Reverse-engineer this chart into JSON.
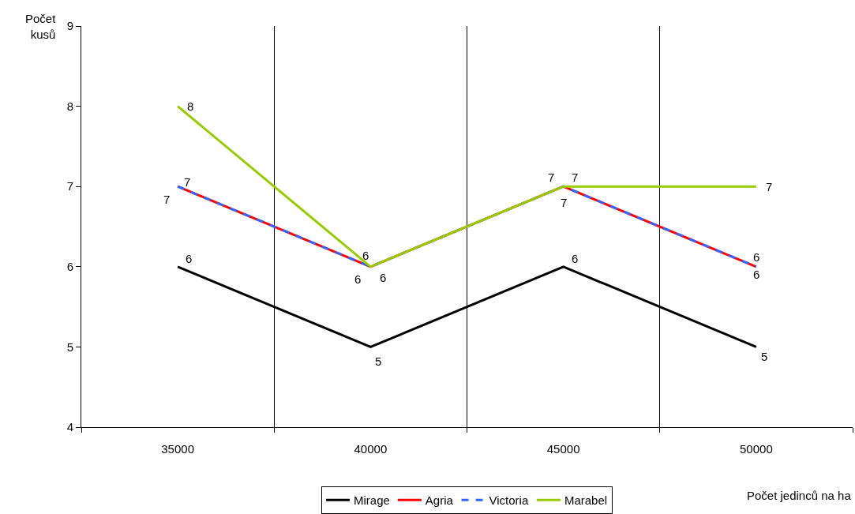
{
  "chart_data": {
    "type": "line",
    "xlabel": "Počet jedinců na ha",
    "ylabel": "Počet kusů",
    "categories": [
      "35000",
      "40000",
      "45000",
      "50000"
    ],
    "series": [
      {
        "name": "Mirage",
        "color": "#000000",
        "values": [
          6,
          5,
          6,
          5
        ]
      },
      {
        "name": "Agria",
        "color": "#ff0000",
        "values": [
          7,
          6,
          7,
          6
        ]
      },
      {
        "name": "Victoria",
        "color": "#3366ff",
        "values": [
          7,
          6,
          7,
          6
        ],
        "line_style": "dashed"
      },
      {
        "name": "Marabel",
        "color": "#99cc00",
        "values": [
          8,
          6,
          7,
          7
        ]
      }
    ],
    "ylim": [
      4,
      9
    ],
    "yticks": [
      4,
      5,
      6,
      7,
      8,
      9
    ],
    "grid": "x",
    "legend": "bottom",
    "data_labels": true,
    "marker": "none"
  }
}
